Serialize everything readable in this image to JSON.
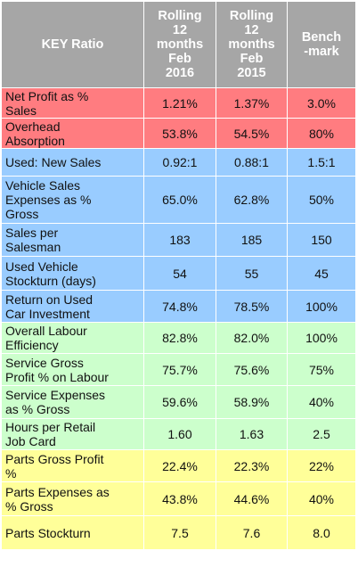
{
  "header": {
    "key_ratio": "KEY Ratio",
    "col_2016": "Rolling\n12\nmonths\nFeb\n2016",
    "col_2015": "Rolling\n12\nmonths\nFeb\n2015",
    "col_benchmark": "Bench\n-mark"
  },
  "rows": [
    {
      "group": "red",
      "label": "Net Profit as %\nSales",
      "v2016": "1.21%",
      "v2015": "1.37%",
      "bench": "3.0%"
    },
    {
      "group": "red",
      "label": "Overhead\nAbsorption",
      "v2016": "53.8%",
      "v2015": "54.5%",
      "bench": "80%"
    },
    {
      "group": "blue",
      "label": "Used: New Sales",
      "v2016": "0.92:1",
      "v2015": "0.88:1",
      "bench": "1.5:1"
    },
    {
      "group": "blue",
      "label": "Vehicle Sales\nExpenses as %\nGross",
      "v2016": "65.0%",
      "v2015": "62.8%",
      "bench": "50%"
    },
    {
      "group": "blue",
      "label": "Sales per\nSalesman",
      "v2016": "183",
      "v2015": "185",
      "bench": "150"
    },
    {
      "group": "blue",
      "label": "Used Vehicle\nStockturn (days)",
      "v2016": "54",
      "v2015": "55",
      "bench": "45"
    },
    {
      "group": "blue",
      "label": "Return on Used\nCar Investment",
      "v2016": "74.8%",
      "v2015": "78.5%",
      "bench": "100%"
    },
    {
      "group": "green",
      "label": "Overall Labour\nEfficiency",
      "v2016": "82.8%",
      "v2015": "82.0%",
      "bench": "100%"
    },
    {
      "group": "green",
      "label": "Service Gross\nProfit % on Labour",
      "v2016": "75.7%",
      "v2015": "75.6%",
      "bench": "75%"
    },
    {
      "group": "green",
      "label": "Service Expenses\nas % Gross",
      "v2016": "59.6%",
      "v2015": "58.9%",
      "bench": "40%"
    },
    {
      "group": "green",
      "label": "Hours per Retail\nJob Card",
      "v2016": "1.60",
      "v2015": "1.63",
      "bench": "2.5"
    },
    {
      "group": "yellow",
      "label": "Parts Gross Profit\n%",
      "v2016": "22.4%",
      "v2015": "22.3%",
      "bench": "22%"
    },
    {
      "group": "yellow",
      "label": "Parts Expenses as\n% Gross",
      "v2016": "43.8%",
      "v2015": "44.6%",
      "bench": "40%"
    },
    {
      "group": "yellow",
      "label": "Parts Stockturn",
      "v2016": "7.5",
      "v2015": "7.6",
      "bench": "8.0"
    }
  ],
  "group_colors": {
    "header": "#a6a6a6",
    "red": "#ff7c80",
    "blue": "#99ccff",
    "green": "#ccffcc",
    "yellow": "#ffff99"
  }
}
